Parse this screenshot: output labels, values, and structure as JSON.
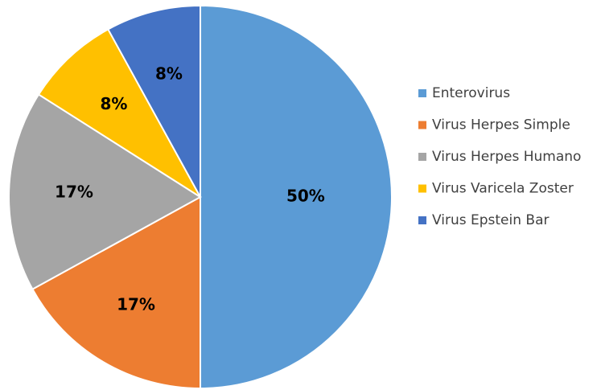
{
  "chart_data": {
    "type": "pie",
    "categories": [
      "Enterovirus",
      "Virus Herpes Simple",
      "Virus Herpes Humano",
      "Virus Varicela Zoster",
      "Virus Epstein Bar"
    ],
    "values": [
      50,
      17,
      17,
      8,
      8
    ],
    "value_labels": [
      "50%",
      "17%",
      "17%",
      "8%",
      "8%"
    ],
    "colors": [
      "#5b9bd5",
      "#ed7d31",
      "#a5a5a5",
      "#ffc000",
      "#4472c4"
    ],
    "legend": "right"
  }
}
